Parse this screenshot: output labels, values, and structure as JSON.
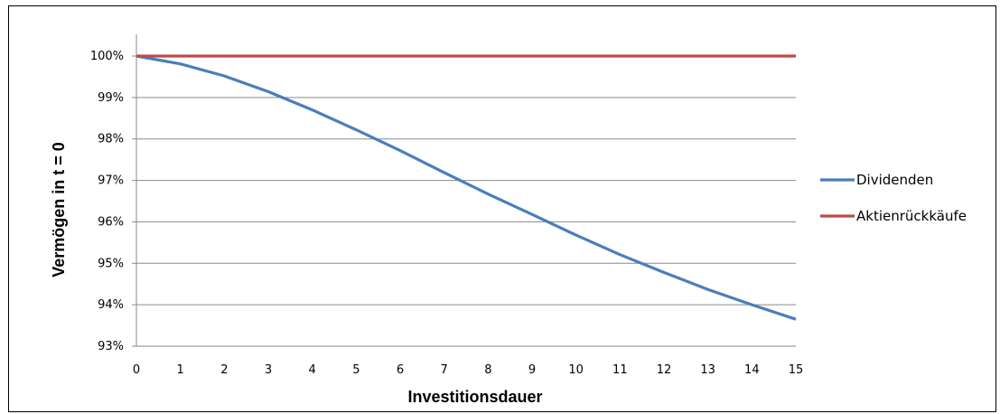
{
  "chart_data": {
    "type": "line",
    "title": "",
    "xlabel": "Investitionsdauer",
    "ylabel": "Vermögen in t = 0",
    "x": [
      0,
      1,
      2,
      3,
      4,
      5,
      6,
      7,
      8,
      9,
      10,
      11,
      12,
      13,
      14,
      15
    ],
    "x_ticks": [
      "0",
      "1",
      "2",
      "3",
      "4",
      "5",
      "6",
      "7",
      "8",
      "9",
      "10",
      "11",
      "12",
      "13",
      "14",
      "15"
    ],
    "y_ticks": [
      {
        "value": 93,
        "label": "93%"
      },
      {
        "value": 94,
        "label": "94%"
      },
      {
        "value": 95,
        "label": "95%"
      },
      {
        "value": 96,
        "label": "96%"
      },
      {
        "value": 97,
        "label": "97%"
      },
      {
        "value": 98,
        "label": "98%"
      },
      {
        "value": 99,
        "label": "99%"
      },
      {
        "value": 100,
        "label": "100%"
      }
    ],
    "xlim": [
      0,
      15
    ],
    "ylim": [
      93,
      100
    ],
    "grid": "horizontal",
    "legend_position": "right",
    "series": [
      {
        "name": "Dividenden",
        "color": "#4a7ebb",
        "values": [
          100.0,
          99.81,
          99.52,
          99.14,
          98.7,
          98.22,
          97.72,
          97.19,
          96.67,
          96.18,
          95.68,
          95.21,
          94.78,
          94.37,
          94.0,
          93.65
        ]
      },
      {
        "name": "Aktienrückkäufe",
        "color": "#be4b48",
        "values": [
          100,
          100,
          100,
          100,
          100,
          100,
          100,
          100,
          100,
          100,
          100,
          100,
          100,
          100,
          100,
          100
        ]
      }
    ]
  }
}
